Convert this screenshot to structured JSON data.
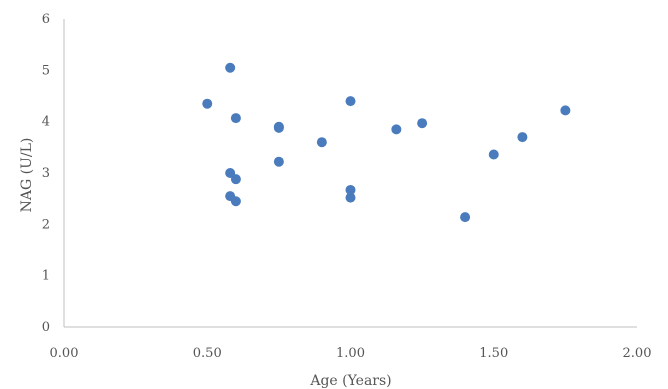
{
  "chart_data": {
    "type": "scatter",
    "xlabel": "Age (Years)",
    "ylabel": "NAG (U/L)",
    "xlim": [
      0,
      2
    ],
    "ylim": [
      0,
      6
    ],
    "xticks": [
      "0.00",
      "0.50",
      "1.00",
      "1.50",
      "2.00"
    ],
    "yticks": [
      "0",
      "1",
      "2",
      "3",
      "4",
      "5",
      "6"
    ],
    "grid": false,
    "legend": "none",
    "marker_color": "#4a7bbd",
    "axis_color": "#bfbfbf",
    "series": [
      {
        "points": [
          {
            "x": 0.5,
            "y": 4.35
          },
          {
            "x": 0.58,
            "y": 5.05
          },
          {
            "x": 0.58,
            "y": 3.0
          },
          {
            "x": 0.58,
            "y": 2.55
          },
          {
            "x": 0.6,
            "y": 4.07
          },
          {
            "x": 0.6,
            "y": 2.88
          },
          {
            "x": 0.6,
            "y": 2.45
          },
          {
            "x": 0.75,
            "y": 3.9
          },
          {
            "x": 0.75,
            "y": 3.88
          },
          {
            "x": 0.75,
            "y": 3.22
          },
          {
            "x": 0.9,
            "y": 3.6
          },
          {
            "x": 1.0,
            "y": 4.4
          },
          {
            "x": 1.0,
            "y": 2.67
          },
          {
            "x": 1.0,
            "y": 2.52
          },
          {
            "x": 1.16,
            "y": 3.85
          },
          {
            "x": 1.25,
            "y": 3.97
          },
          {
            "x": 1.4,
            "y": 2.14
          },
          {
            "x": 1.5,
            "y": 3.36
          },
          {
            "x": 1.6,
            "y": 3.7
          },
          {
            "x": 1.75,
            "y": 4.22
          }
        ]
      }
    ]
  }
}
